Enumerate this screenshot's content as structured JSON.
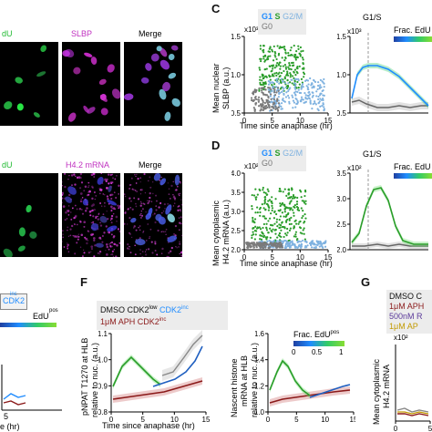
{
  "panel_letters": {
    "c": "C",
    "d": "D",
    "f": "F",
    "g": "G"
  },
  "micrographs": {
    "row1": {
      "left_fragment": "dU",
      "mid": "SLBP",
      "right": "Merge"
    },
    "row2": {
      "left_fragment": "dU",
      "mid": "H4.2 mRNA",
      "right": "Merge"
    }
  },
  "panel_c": {
    "ylabel_line1": "Mean nuclear",
    "ylabel_line2": "SLBP (a.u.)",
    "scale": "x10³",
    "right_scale": "x10³",
    "legend": {
      "g1": "G1",
      "s": "S",
      "g2m": "G2/M",
      "g0": "G0"
    },
    "colorbar_label": "Frac. EdU",
    "g1s_label": "G1/S",
    "xlabel": "Time since anaphase (hr)",
    "xticks": [
      "0",
      "5",
      "10",
      "15"
    ],
    "yticks_left": [
      "0.5",
      "1.0",
      "1.5"
    ],
    "yticks_right": [
      "0.5",
      "1.0",
      "1.5"
    ]
  },
  "panel_d": {
    "ylabel_line1": "Mean cytoplasmic",
    "ylabel_line2": "H4.2 mRNA (a.u.)",
    "scale": "x10²",
    "right_scale": "x10²",
    "legend": {
      "g1": "G1",
      "s": "S",
      "g2m": "G2/M",
      "g0": "G0"
    },
    "colorbar_label": "Frac. EdU",
    "g1s_label": "G1/S",
    "xlabel": "Time since anaphase (hr)",
    "xticks": [
      "0",
      "5",
      "10",
      "15"
    ],
    "yticks_left": [
      "2.0",
      "2.5",
      "3.0",
      "3.5",
      "4.0"
    ],
    "yticks_right": [
      "2.0",
      "2.5",
      "3.0",
      "3.5"
    ]
  },
  "panel_e_fragment": {
    "cdk2_label": "CDK2",
    "cdk2_sup": "inc",
    "edu_label": "EdU",
    "edu_sup": "pos",
    "xlabel_fragment": "e (hr)",
    "xtick": "5"
  },
  "panel_f": {
    "legend_line1_a": "DMSO CDK2",
    "legend_line1_sup_a": "low",
    "legend_line1_b": " CDK2",
    "legend_line1_sup_b": "inc",
    "legend_line2": "1μM APH CDK2",
    "legend_line2_sup": "inc",
    "left_ylabel_line1": "pNPAT T1270 at HLB",
    "left_ylabel_line2": "relative to nuc. (a.u.)",
    "left_yticks": [
      "0.8",
      "0.9",
      "1.0",
      "1.1"
    ],
    "right_ylabel_line1": "Nascent histone",
    "right_ylabel_line2": "mRNA at HLB",
    "right_ylabel_line3": "relative to nuc. (a.u.)",
    "right_yticks": [
      "1.0",
      "1.2",
      "1.4",
      "1.6"
    ],
    "colorbar_label": "Frac. EdU",
    "colorbar_sup": "pos",
    "colorbar_ticks": [
      "0",
      "0.5",
      "1"
    ],
    "xlabel": "Time since anaphase (hr)",
    "xticks": [
      "0",
      "5",
      "10",
      "15"
    ]
  },
  "panel_g": {
    "legend": [
      "DMSO C",
      "1μM APH",
      "500nM R",
      "1μM AP"
    ],
    "ylabel_line1": "Mean cytoplasmic",
    "ylabel_line2": "H4.2 mRNA",
    "scale": "x10²",
    "xticks": [
      "0",
      "5"
    ]
  },
  "colors": {
    "g1": "#1f8cff",
    "s": "#2a9d2a",
    "g2m": "#7fb2e0",
    "g0": "#7a7a7a",
    "cdk2low": "#8c8c8c",
    "aph": "#8b1a1a",
    "slbp": "#cc33cc",
    "edu": "#22cc44"
  }
}
